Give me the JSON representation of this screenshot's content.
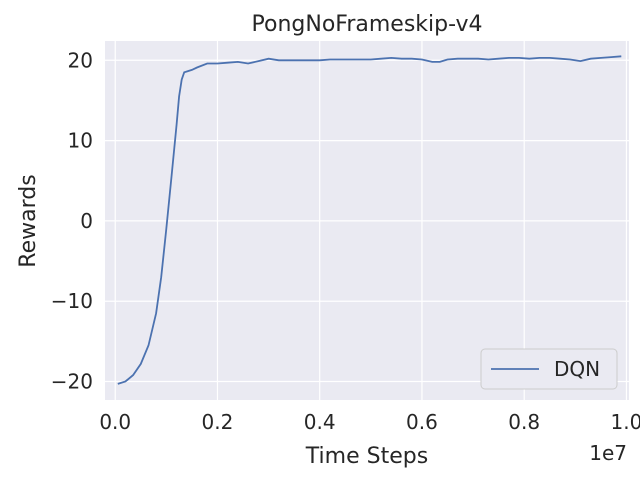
{
  "chart_data": {
    "type": "line",
    "title": "PongNoFrameskip-v4",
    "xlabel": "Time Steps",
    "ylabel": "Rewards",
    "x_offset_label": "1e7",
    "xlim": [
      -0.02,
      1.005
    ],
    "ylim": [
      -22.3,
      22.4
    ],
    "x_ticks": [
      0.0,
      0.2,
      0.4,
      0.6,
      0.8,
      1.0
    ],
    "x_tick_labels": [
      "0.0",
      "0.2",
      "0.4",
      "0.6",
      "0.8",
      "1.0"
    ],
    "y_ticks": [
      -20,
      -10,
      0,
      10,
      20
    ],
    "y_tick_labels": [
      "−20",
      "−10",
      "0",
      "10",
      "20"
    ],
    "grid": true,
    "legend_position": "lower-right",
    "colors": {
      "background": "#eaeaf2",
      "grid": "#ffffff",
      "line": "#4c72b0"
    },
    "series": [
      {
        "name": "DQN",
        "x": [
          0.005,
          0.02,
          0.035,
          0.05,
          0.065,
          0.08,
          0.09,
          0.1,
          0.11,
          0.12,
          0.125,
          0.13,
          0.135,
          0.14,
          0.15,
          0.16,
          0.18,
          0.2,
          0.22,
          0.24,
          0.26,
          0.28,
          0.3,
          0.32,
          0.34,
          0.36,
          0.38,
          0.4,
          0.42,
          0.44,
          0.46,
          0.48,
          0.5,
          0.52,
          0.54,
          0.56,
          0.58,
          0.6,
          0.62,
          0.635,
          0.65,
          0.67,
          0.69,
          0.71,
          0.73,
          0.75,
          0.77,
          0.79,
          0.81,
          0.83,
          0.85,
          0.87,
          0.89,
          0.91,
          0.93,
          0.95,
          0.97,
          0.99
        ],
        "y": [
          -20.3,
          -20.0,
          -19.2,
          -17.8,
          -15.5,
          -11.5,
          -7.0,
          -1.0,
          5.5,
          12.0,
          15.5,
          17.6,
          18.5,
          18.6,
          18.8,
          19.1,
          19.6,
          19.6,
          19.7,
          19.8,
          19.6,
          19.9,
          20.2,
          20.0,
          20.0,
          20.0,
          20.0,
          20.0,
          20.1,
          20.1,
          20.1,
          20.1,
          20.1,
          20.2,
          20.3,
          20.2,
          20.2,
          20.1,
          19.8,
          19.8,
          20.1,
          20.2,
          20.2,
          20.2,
          20.1,
          20.2,
          20.3,
          20.3,
          20.2,
          20.3,
          20.3,
          20.2,
          20.1,
          19.9,
          20.2,
          20.3,
          20.4,
          20.5
        ]
      }
    ]
  }
}
